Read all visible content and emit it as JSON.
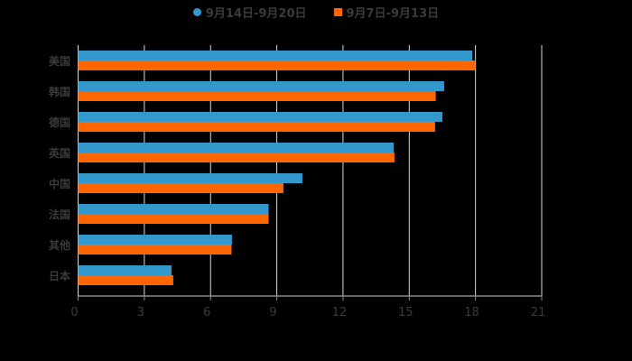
{
  "chart_data": {
    "type": "bar",
    "orientation": "horizontal",
    "title": "",
    "xlabel": "",
    "ylabel": "",
    "categories": [
      "美国",
      "韩国",
      "德国",
      "英国",
      "中国",
      "法国",
      "其他",
      "日本"
    ],
    "series": [
      {
        "name": "9月14日-9月20日",
        "color": "#3399cc",
        "marker": "circle",
        "values": [
          17.85,
          16.58,
          16.5,
          14.3,
          10.16,
          8.63,
          6.97,
          4.23
        ]
      },
      {
        "name": "9月7日-9月13日",
        "color": "#ff6600",
        "marker": "square",
        "values": [
          18.0,
          16.2,
          16.17,
          14.33,
          9.3,
          8.63,
          6.95,
          4.31
        ]
      }
    ],
    "xlim": [
      0,
      21
    ],
    "xticks": [
      0,
      3,
      6,
      9,
      12,
      15,
      18,
      21
    ],
    "grid": true,
    "legend_position": "top"
  },
  "legend": {
    "items": [
      {
        "label": "9月14日-9月20日",
        "color": "#3399cc"
      },
      {
        "label": "9月7日-9月13日",
        "color": "#ff6600"
      }
    ]
  },
  "colors": {
    "background": "#000000",
    "grid": "#d9d9d9",
    "axis": "#8c8c8c",
    "text": "#3a3a3a"
  }
}
